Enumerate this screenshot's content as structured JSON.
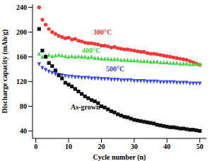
{
  "chart_data": {
    "type": "scatter",
    "x_label": "Cycle number (n)",
    "y_label": "Discharge capacity (mAh/g)",
    "x": [
      1,
      2,
      3,
      4,
      5,
      6,
      7,
      8,
      9,
      10,
      11,
      12,
      13,
      14,
      15,
      16,
      17,
      18,
      19,
      20,
      21,
      22,
      23,
      24,
      25,
      26,
      27,
      28,
      29,
      30,
      31,
      32,
      33,
      34,
      35,
      36,
      37,
      38,
      39,
      40,
      41,
      42,
      43,
      44,
      45,
      46,
      47,
      48,
      49,
      50
    ],
    "xlim": [
      -1,
      52
    ],
    "xticks": [
      0,
      10,
      20,
      30,
      40,
      50
    ],
    "ylim": [
      28,
      245
    ],
    "yticks": [
      40,
      80,
      120,
      160,
      200,
      240
    ],
    "grid": false,
    "series": [
      {
        "name": "300°C",
        "color": "#ff3333",
        "marker": "circle",
        "values": [
          240,
          220,
          212,
          205,
          200,
          197,
          194,
          192,
          190,
          191,
          188,
          189,
          186,
          185,
          183,
          182,
          182,
          181,
          180,
          178,
          178,
          177,
          175,
          176,
          174,
          173,
          172,
          172,
          171,
          170,
          169,
          168,
          168,
          166,
          165,
          165,
          164,
          163,
          162,
          161,
          160,
          159,
          158,
          157,
          156,
          155,
          153,
          151,
          149,
          147
        ]
      },
      {
        "name": "400°C",
        "color": "#33dd33",
        "marker": "triangle",
        "values": [
          165,
          160,
          162,
          163,
          161,
          162,
          163,
          162,
          161,
          160,
          161,
          160,
          161,
          160,
          160,
          159,
          160,
          158,
          158,
          157,
          157,
          157,
          156,
          156,
          156,
          155,
          155,
          155,
          154,
          154,
          154,
          153,
          153,
          153,
          152,
          152,
          152,
          151,
          151,
          151,
          150,
          150,
          150,
          149,
          149,
          149,
          148,
          148,
          148,
          148
        ]
      },
      {
        "name": "500°C",
        "color": "#3344ff",
        "marker": "triangle-down",
        "values": [
          148,
          142,
          139,
          136,
          134,
          132,
          131,
          130,
          129,
          128,
          128,
          127,
          127,
          126,
          126,
          126,
          125,
          125,
          125,
          124,
          124,
          124,
          123,
          123,
          123,
          122,
          122,
          122,
          122,
          121,
          121,
          121,
          121,
          120,
          120,
          120,
          120,
          119,
          119,
          119,
          119,
          119,
          118,
          118,
          118,
          118,
          117,
          117,
          117,
          117
        ]
      },
      {
        "name": "As-grown",
        "color": "#111111",
        "marker": "square",
        "values": [
          205,
          170,
          160,
          150,
          145,
          138,
          130,
          125,
          118,
          115,
          112,
          108,
          104,
          100,
          96,
          93,
          90,
          88,
          85,
          80,
          78,
          75,
          72,
          70,
          67,
          65,
          63,
          62,
          60,
          58,
          57,
          56,
          55,
          54,
          53,
          52,
          50,
          49,
          48,
          47,
          46,
          46,
          45,
          44,
          44,
          43,
          42,
          42,
          41,
          40
        ]
      }
    ]
  }
}
